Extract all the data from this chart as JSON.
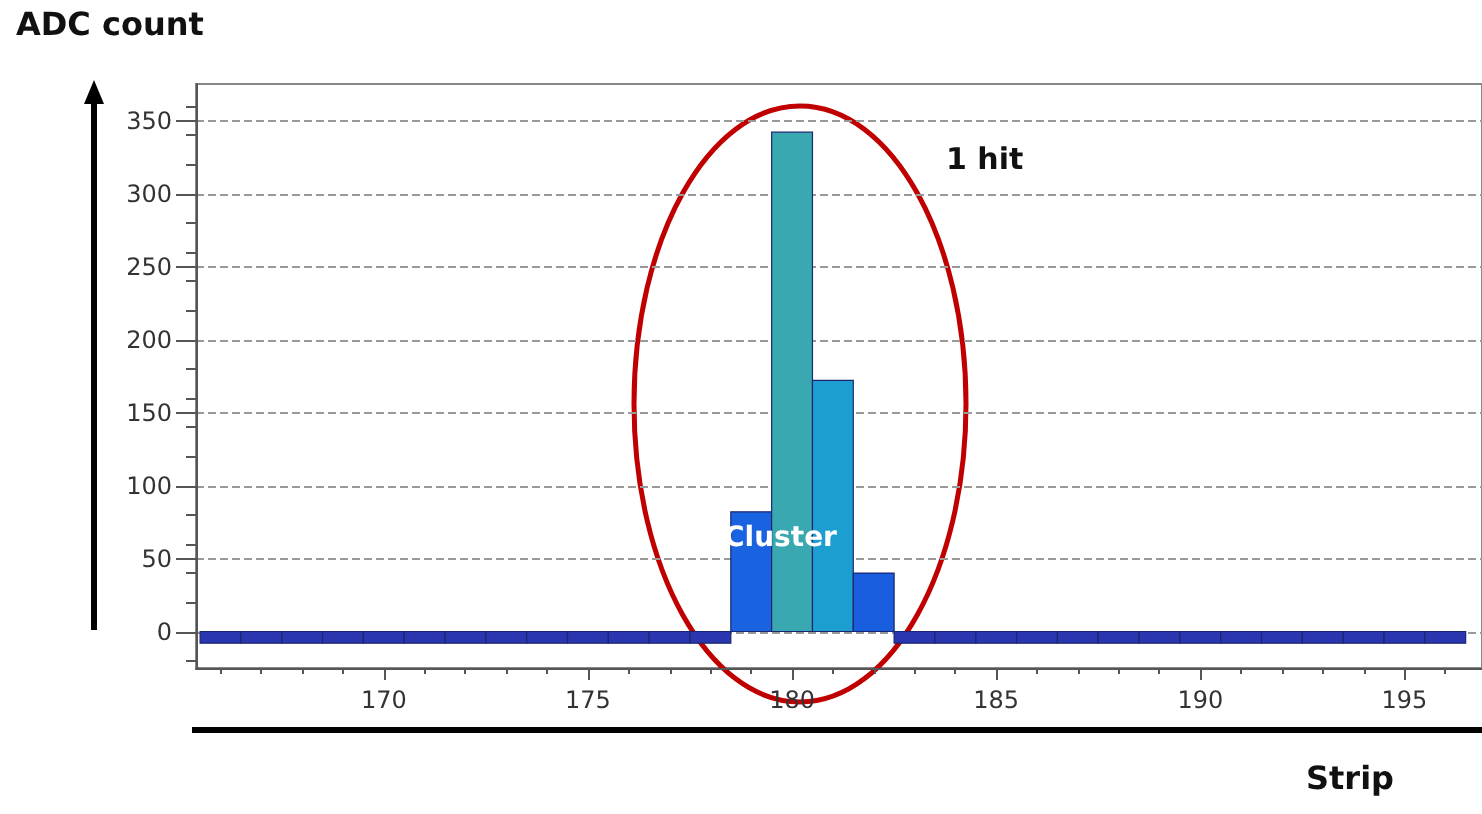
{
  "chart_data": {
    "type": "histogram",
    "xlabel": "Strip",
    "ylabel": "ADC count",
    "bins": [
      165.5,
      166.5,
      167.5,
      168.5,
      169.5,
      170.5,
      171.5,
      172.5,
      173.5,
      174.5,
      175.5,
      176.5,
      177.5,
      178.5,
      179.5,
      180.5,
      181.5,
      182.5,
      183.5,
      184.5,
      185.5,
      186.5,
      187.5,
      188.5,
      189.5,
      190.5,
      191.5,
      192.5,
      193.5,
      194.5,
      195.5,
      196.5
    ],
    "values": [
      -8,
      -8,
      -8,
      -8,
      -8,
      -8,
      -8,
      -8,
      -8,
      -8,
      -8,
      -8,
      -8,
      82,
      342,
      172,
      40,
      -8,
      -8,
      -8,
      -8,
      -8,
      -8,
      -8,
      -8,
      -8,
      -8,
      -8,
      -8,
      -8,
      -8
    ],
    "colors": [
      "#2a35b0",
      "#2a35b0",
      "#2a35b0",
      "#2a35b0",
      "#2a35b0",
      "#2a35b0",
      "#2a35b0",
      "#2a35b0",
      "#2a35b0",
      "#2a35b0",
      "#2a35b0",
      "#2a35b0",
      "#2a35b0",
      "#1a63e0",
      "#3aa8b0",
      "#1c9fd0",
      "#1a5ee0",
      "#2a35b0",
      "#2a35b0",
      "#2a35b0",
      "#2a35b0",
      "#2a35b0",
      "#2a35b0",
      "#2a35b0",
      "#2a35b0",
      "#2a35b0",
      "#2a35b0",
      "#2a35b0",
      "#2a35b0",
      "#2a35b0",
      "#2a35b0"
    ],
    "xlim": [
      165.4,
      196.9
    ],
    "xticks": [
      170,
      175,
      180,
      185,
      190,
      195
    ],
    "ylim": [
      -25,
      375
    ],
    "yticks": [
      0,
      50,
      100,
      150,
      200,
      250,
      300,
      350
    ],
    "grid": "y",
    "annotations": [
      "1 hit",
      "Cluster"
    ]
  }
}
